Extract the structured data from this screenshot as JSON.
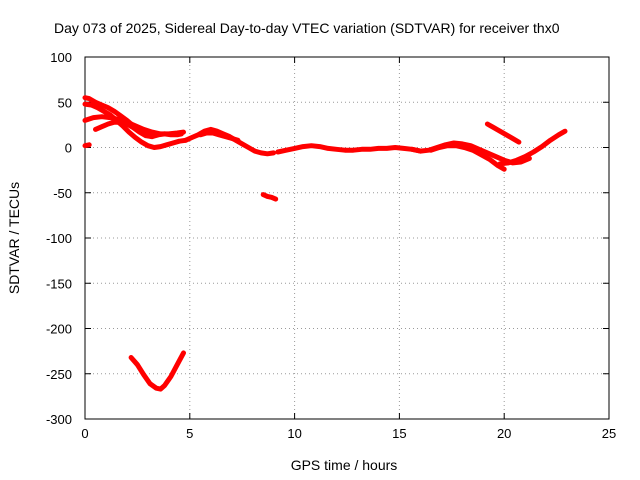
{
  "chart_data": {
    "type": "scatter",
    "title": "Day 073 of 2025, Sidereal Day-to-day VTEC variation (SDTVAR) for receiver thx0",
    "xlabel": "GPS time / hours",
    "ylabel": "SDTVAR / TECUs",
    "xlim": [
      0,
      25
    ],
    "ylim": [
      -300,
      100
    ],
    "xticks": [
      0,
      5,
      10,
      15,
      20,
      25
    ],
    "yticks": [
      100,
      50,
      0,
      -50,
      -100,
      -150,
      -200,
      -250,
      -300
    ],
    "grid": true,
    "color": "#ff0000",
    "series": [
      {
        "x": [
          0.0,
          0.2,
          0.5,
          0.8,
          1.1,
          1.4,
          1.7,
          2.0,
          2.3,
          2.6,
          2.9,
          3.2
        ],
        "y": [
          55,
          54,
          50,
          47,
          44,
          40,
          35,
          30,
          24,
          18,
          14,
          12
        ]
      },
      {
        "x": [
          0.0,
          0.3,
          0.6,
          0.9,
          1.2,
          1.5,
          1.8,
          2.1,
          2.4,
          2.7,
          3.0,
          3.3,
          3.6,
          3.9,
          4.2,
          4.5,
          4.8
        ],
        "y": [
          48,
          47,
          44,
          40,
          36,
          30,
          24,
          17,
          11,
          6,
          2,
          0,
          1,
          3,
          5,
          7,
          8
        ]
      },
      {
        "x": [
          0.0,
          0.4,
          0.8,
          1.2,
          1.6,
          2.0,
          2.4,
          2.8,
          3.2,
          3.6,
          4.0,
          4.4,
          4.7
        ],
        "y": [
          30,
          33,
          34,
          33,
          31,
          28,
          24,
          20,
          17,
          15,
          15,
          16,
          17
        ]
      },
      {
        "x": [
          0.5,
          0.8,
          1.1,
          1.4,
          1.7,
          2.0,
          2.3,
          2.6,
          2.9,
          3.2,
          3.5,
          3.8,
          4.1,
          4.4,
          4.6
        ],
        "y": [
          20,
          23,
          26,
          28,
          28,
          26,
          22,
          17,
          13,
          12,
          14,
          15,
          14,
          14,
          15
        ]
      },
      {
        "x": [
          0.0,
          0.2
        ],
        "y": [
          2,
          3
        ]
      },
      {
        "x": [
          4.8,
          5.1,
          5.4,
          5.7,
          6.0,
          6.3,
          6.6,
          6.9,
          7.2,
          7.5,
          7.8,
          8.1,
          8.4,
          8.7,
          9.0
        ],
        "y": [
          8,
          11,
          14,
          18,
          20,
          18,
          15,
          12,
          8,
          4,
          0,
          -4,
          -6,
          -7,
          -6
        ]
      },
      {
        "x": [
          5.5,
          5.8,
          6.1,
          6.4,
          6.7,
          7.0,
          7.3
        ],
        "y": [
          14,
          16,
          16,
          14,
          12,
          10,
          8
        ]
      },
      {
        "x": [
          8.5,
          8.7,
          8.9,
          9.1
        ],
        "y": [
          -52,
          -54,
          -55,
          -57
        ]
      },
      {
        "x": [
          9.2,
          9.6,
          10.0,
          10.4,
          10.8,
          11.2,
          11.6,
          12.0,
          12.4,
          12.8,
          13.2,
          13.6,
          14.0,
          14.4,
          14.8,
          15.2,
          15.6,
          16.0
        ],
        "y": [
          -5,
          -3,
          -1,
          1,
          2,
          1,
          -1,
          -2,
          -3,
          -3,
          -2,
          -2,
          -1,
          -1,
          0,
          -1,
          -2,
          -4
        ]
      },
      {
        "x": [
          15.6,
          16.0,
          16.4,
          16.8,
          17.2,
          17.6,
          18.0,
          18.4,
          18.8,
          19.2,
          19.6,
          20.0,
          20.4,
          20.8,
          21.2
        ],
        "y": [
          -2,
          -4,
          -3,
          0,
          3,
          5,
          4,
          2,
          -2,
          -6,
          -10,
          -14,
          -17,
          -16,
          -12
        ]
      },
      {
        "x": [
          16.5,
          16.9,
          17.3,
          17.7,
          18.1,
          18.5,
          18.9,
          19.3,
          19.7,
          20.0
        ],
        "y": [
          -3,
          0,
          2,
          2,
          0,
          -3,
          -8,
          -13,
          -20,
          -24
        ]
      },
      {
        "x": [
          19.2,
          19.5,
          19.8,
          20.1,
          20.4,
          20.7
        ],
        "y": [
          26,
          22,
          18,
          14,
          10,
          6
        ]
      },
      {
        "x": [
          19.8,
          20.2,
          20.6,
          21.0,
          21.4,
          21.8,
          22.2,
          22.6,
          22.9
        ],
        "y": [
          -18,
          -17,
          -14,
          -10,
          -5,
          1,
          8,
          14,
          18
        ]
      },
      {
        "x": [
          2.2,
          2.5,
          2.8,
          3.1,
          3.4,
          3.6,
          3.8,
          4.1,
          4.4,
          4.7
        ],
        "y": [
          -232,
          -240,
          -251,
          -261,
          -266,
          -267,
          -263,
          -253,
          -240,
          -227
        ]
      }
    ]
  }
}
